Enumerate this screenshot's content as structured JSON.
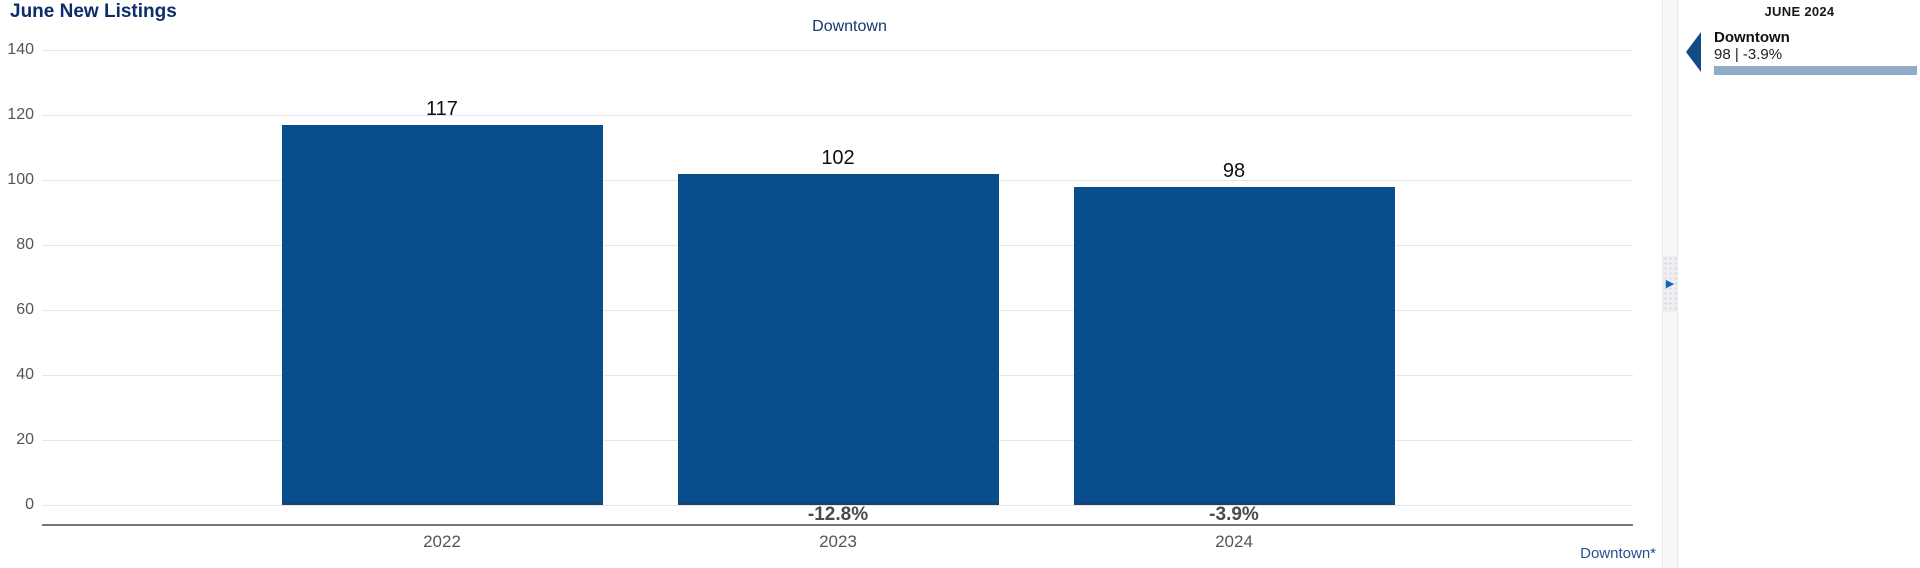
{
  "title": "June New Listings",
  "legend": {
    "items": [
      {
        "label": "Downtown"
      }
    ]
  },
  "footer_link": "Downtown*",
  "splitter": {
    "arrow_icon": "▶"
  },
  "sidebar": {
    "header": "JUNE 2024",
    "entries": [
      {
        "name": "Downtown",
        "value": "98 | -3.9%"
      }
    ]
  },
  "colors": {
    "bar_blue": "#084e8c",
    "title_navy": "#0c2e6b",
    "legend_navy": "#17366b",
    "axis_text": "#555555",
    "gridline": "#e6e6e6",
    "axis_line": "#777777",
    "link_blue": "#27508f",
    "sidebar_bar_steel": "#8fadca",
    "marker_navy": "#114b85",
    "splitter_arrow_blue": "#1565c0"
  },
  "chart_data": {
    "type": "bar",
    "title": "June New Listings",
    "categories": [
      "2022",
      "2023",
      "2024"
    ],
    "series": [
      {
        "name": "Downtown",
        "values": [
          117,
          102,
          98
        ]
      }
    ],
    "value_labels": [
      "117",
      "102",
      "98"
    ],
    "pct_change_labels": [
      "",
      "-12.8%",
      "-3.9%"
    ],
    "yticks": [
      0,
      20,
      40,
      60,
      80,
      100,
      120,
      140
    ],
    "ylim": [
      0,
      140
    ],
    "xlabel": "",
    "ylabel": "",
    "grid": true,
    "legend_position": "top-center"
  }
}
